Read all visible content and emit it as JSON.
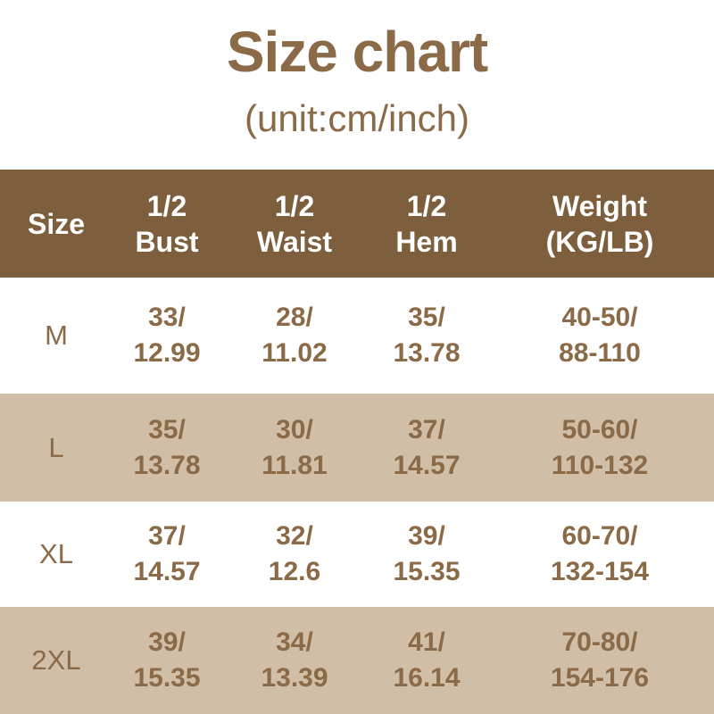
{
  "page": {
    "title": "Size chart",
    "subtitle": "(unit:cm/inch)"
  },
  "colors": {
    "header_bg": "#7d5f3e",
    "alt_row_bg": "#d0bea7",
    "text_brown": "#8a6a47",
    "header_text": "#ffffff",
    "page_bg": "#ffffff"
  },
  "table": {
    "headers": [
      "Size",
      "1/2\nBust",
      "1/2\nWaist",
      "1/2\nHem",
      "Weight\n(KG/LB)"
    ],
    "rows": [
      {
        "size": "M",
        "cells": [
          "33/\n12.99",
          "28/\n11.02",
          "35/\n13.78",
          "40-50/\n88-110"
        ]
      },
      {
        "size": "L",
        "cells": [
          "35/\n13.78",
          "30/\n11.81",
          "37/\n14.57",
          "50-60/\n110-132"
        ]
      },
      {
        "size": "XL",
        "cells": [
          "37/\n14.57",
          "32/\n12.6",
          "39/\n15.35",
          "60-70/\n132-154"
        ]
      },
      {
        "size": "2XL",
        "cells": [
          "39/\n15.35",
          "34/\n13.39",
          "41/\n16.14",
          "70-80/\n154-176"
        ]
      }
    ]
  },
  "chart_data": {
    "type": "table",
    "title": "Size chart",
    "subtitle": "(unit:cm/inch)",
    "unit": "cm/inch",
    "columns": [
      "Size",
      "1/2 Bust",
      "1/2 Waist",
      "1/2 Hem",
      "Weight (KG/LB)"
    ],
    "rows": [
      [
        "M",
        "33/12.99",
        "28/11.02",
        "35/13.78",
        "40-50/88-110"
      ],
      [
        "L",
        "35/13.78",
        "30/11.81",
        "37/14.57",
        "50-60/110-132"
      ],
      [
        "XL",
        "37/14.57",
        "32/12.6",
        "39/15.35",
        "60-70/132-154"
      ],
      [
        "2XL",
        "39/15.35",
        "34/13.39",
        "41/16.14",
        "70-80/154-176"
      ]
    ]
  }
}
